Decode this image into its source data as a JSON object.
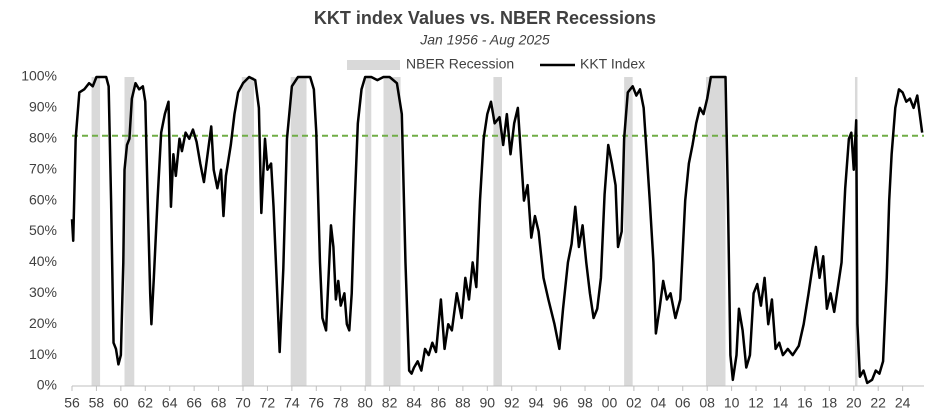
{
  "chart_data": {
    "type": "line",
    "title": "KKT index Values vs. NBER Recessions",
    "subtitle": "Jan 1956 - Aug 2025",
    "xlim": [
      1956,
      2025.75
    ],
    "xticks": [
      {
        "value": 1956,
        "label": "56"
      },
      {
        "value": 1958,
        "label": "58"
      },
      {
        "value": 1960,
        "label": "60"
      },
      {
        "value": 1962,
        "label": "62"
      },
      {
        "value": 1964,
        "label": "64"
      },
      {
        "value": 1966,
        "label": "66"
      },
      {
        "value": 1968,
        "label": "68"
      },
      {
        "value": 1970,
        "label": "70"
      },
      {
        "value": 1972,
        "label": "72"
      },
      {
        "value": 1974,
        "label": "74"
      },
      {
        "value": 1976,
        "label": "76"
      },
      {
        "value": 1978,
        "label": "78"
      },
      {
        "value": 1980,
        "label": "80"
      },
      {
        "value": 1982,
        "label": "82"
      },
      {
        "value": 1984,
        "label": "84"
      },
      {
        "value": 1986,
        "label": "86"
      },
      {
        "value": 1988,
        "label": "88"
      },
      {
        "value": 1990,
        "label": "90"
      },
      {
        "value": 1992,
        "label": "92"
      },
      {
        "value": 1994,
        "label": "94"
      },
      {
        "value": 1996,
        "label": "96"
      },
      {
        "value": 1998,
        "label": "98"
      },
      {
        "value": 2000,
        "label": "00"
      },
      {
        "value": 2002,
        "label": "02"
      },
      {
        "value": 2004,
        "label": "04"
      },
      {
        "value": 2006,
        "label": "06"
      },
      {
        "value": 2008,
        "label": "08"
      },
      {
        "value": 2010,
        "label": "10"
      },
      {
        "value": 2012,
        "label": "12"
      },
      {
        "value": 2014,
        "label": "14"
      },
      {
        "value": 2016,
        "label": "16"
      },
      {
        "value": 2018,
        "label": "18"
      },
      {
        "value": 2020,
        "label": "20"
      },
      {
        "value": 2022,
        "label": "22"
      },
      {
        "value": 2024,
        "label": "24"
      }
    ],
    "ylim": [
      0,
      100
    ],
    "yticks": [
      {
        "value": 0,
        "label": "0%"
      },
      {
        "value": 10,
        "label": "10%"
      },
      {
        "value": 20,
        "label": "20%"
      },
      {
        "value": 30,
        "label": "30%"
      },
      {
        "value": 40,
        "label": "40%"
      },
      {
        "value": 50,
        "label": "50%"
      },
      {
        "value": 60,
        "label": "60%"
      },
      {
        "value": 70,
        "label": "70%"
      },
      {
        "value": 80,
        "label": "80%"
      },
      {
        "value": 90,
        "label": "90%"
      },
      {
        "value": 100,
        "label": "100%"
      }
    ],
    "grid": false,
    "recessions": {
      "name": "NBER Recession",
      "color": "#d9d9d9",
      "periods": [
        [
          1957.6,
          1958.3
        ],
        [
          1960.3,
          1961.1
        ],
        [
          1969.9,
          1970.9
        ],
        [
          1973.9,
          1975.2
        ],
        [
          1980.0,
          1980.5
        ],
        [
          1981.5,
          1982.9
        ],
        [
          1990.5,
          1991.2
        ],
        [
          2001.2,
          2001.9
        ],
        [
          2007.9,
          2009.5
        ],
        [
          2020.1,
          2020.3
        ]
      ]
    },
    "threshold": {
      "value": 81,
      "color": "#70ad47"
    },
    "x": [
      1956.0,
      1956.1,
      1956.3,
      1956.6,
      1957.0,
      1957.4,
      1957.7,
      1958.0,
      1958.8,
      1959.0,
      1959.2,
      1959.4,
      1959.6,
      1959.8,
      1960.0,
      1960.2,
      1960.3,
      1960.5,
      1960.7,
      1960.9,
      1961.2,
      1961.5,
      1961.8,
      1962.0,
      1962.2,
      1962.4,
      1962.5,
      1962.7,
      1963.0,
      1963.3,
      1963.6,
      1963.9,
      1964.1,
      1964.3,
      1964.5,
      1964.8,
      1965.0,
      1965.3,
      1965.6,
      1965.9,
      1966.2,
      1966.5,
      1966.8,
      1967.1,
      1967.4,
      1967.6,
      1967.9,
      1968.2,
      1968.4,
      1968.6,
      1969.0,
      1969.3,
      1969.6,
      1970.0,
      1970.5,
      1971.0,
      1971.3,
      1971.5,
      1971.8,
      1972.0,
      1972.3,
      1972.5,
      1972.8,
      1973.0,
      1973.3,
      1973.6,
      1974.0,
      1974.5,
      1975.5,
      1975.8,
      1976.0,
      1976.3,
      1976.5,
      1976.8,
      1977.0,
      1977.2,
      1977.4,
      1977.6,
      1977.8,
      1978.0,
      1978.3,
      1978.5,
      1978.7,
      1978.9,
      1979.1,
      1979.4,
      1979.7,
      1980.0,
      1980.5,
      1981.0,
      1981.5,
      1982.0,
      1982.6,
      1983.0,
      1983.3,
      1983.6,
      1983.8,
      1984.0,
      1984.3,
      1984.6,
      1984.9,
      1985.2,
      1985.5,
      1985.8,
      1986.2,
      1986.5,
      1986.8,
      1987.1,
      1987.5,
      1987.9,
      1988.2,
      1988.5,
      1988.8,
      1989.1,
      1989.4,
      1989.7,
      1990.0,
      1990.3,
      1990.6,
      1991.0,
      1991.3,
      1991.6,
      1991.9,
      1992.2,
      1992.5,
      1992.8,
      1993.0,
      1993.3,
      1993.6,
      1993.9,
      1994.2,
      1994.6,
      1995.0,
      1995.5,
      1995.9,
      1996.2,
      1996.6,
      1996.9,
      1997.2,
      1997.5,
      1997.8,
      1998.1,
      1998.4,
      1998.7,
      1999.0,
      1999.3,
      1999.6,
      1999.9,
      2000.2,
      2000.5,
      2000.7,
      2001.0,
      2001.2,
      2001.5,
      2001.9,
      2002.2,
      2002.5,
      2002.8,
      2003.0,
      2003.3,
      2003.6,
      2003.8,
      2004.1,
      2004.4,
      2004.7,
      2005.0,
      2005.4,
      2005.8,
      2006.2,
      2006.5,
      2006.8,
      2007.1,
      2007.4,
      2007.7,
      2008.0,
      2008.3,
      2009.0,
      2009.5,
      2009.7,
      2009.9,
      2010.1,
      2010.4,
      2010.6,
      2010.9,
      2011.2,
      2011.5,
      2011.8,
      2012.1,
      2012.4,
      2012.7,
      2013.0,
      2013.3,
      2013.6,
      2013.9,
      2014.2,
      2014.6,
      2015.0,
      2015.5,
      2015.9,
      2016.3,
      2016.6,
      2016.9,
      2017.2,
      2017.5,
      2017.8,
      2018.1,
      2018.4,
      2018.7,
      2019.0,
      2019.3,
      2019.6,
      2019.8,
      2020.0,
      2020.2,
      2020.3,
      2020.5,
      2020.8,
      2021.1,
      2021.5,
      2021.8,
      2022.1,
      2022.4,
      2022.7,
      2022.9,
      2023.1,
      2023.4,
      2023.7,
      2024.0,
      2024.3,
      2024.6,
      2024.9,
      2025.2,
      2025.6
    ],
    "series": [
      {
        "name": "KKT Index",
        "color": "#000000",
        "values": [
          54,
          47,
          80,
          95,
          96,
          98,
          97,
          100,
          100,
          97,
          60,
          14,
          12,
          7,
          10,
          40,
          70,
          78,
          80,
          93,
          98,
          96,
          97,
          92,
          60,
          30,
          20,
          35,
          60,
          82,
          88,
          92,
          58,
          75,
          68,
          80,
          76,
          82,
          80,
          83,
          79,
          72,
          66,
          75,
          84,
          70,
          64,
          70,
          55,
          68,
          78,
          88,
          95,
          98,
          100,
          99,
          90,
          56,
          80,
          70,
          72,
          58,
          30,
          11,
          38,
          80,
          97,
          100,
          100,
          96,
          82,
          40,
          22,
          18,
          35,
          52,
          45,
          28,
          34,
          26,
          30,
          20,
          18,
          30,
          55,
          85,
          96,
          100,
          100,
          99,
          100,
          100,
          98,
          88,
          40,
          5,
          4,
          6,
          8,
          5,
          12,
          10,
          14,
          11,
          28,
          12,
          20,
          18,
          30,
          22,
          35,
          28,
          40,
          32,
          60,
          80,
          88,
          92,
          85,
          87,
          78,
          88,
          75,
          85,
          90,
          72,
          60,
          65,
          48,
          55,
          50,
          35,
          28,
          20,
          12,
          25,
          40,
          46,
          58,
          45,
          52,
          40,
          30,
          22,
          25,
          35,
          62,
          78,
          72,
          65,
          45,
          50,
          80,
          95,
          97,
          94,
          96,
          90,
          78,
          60,
          40,
          17,
          25,
          34,
          28,
          30,
          22,
          28,
          60,
          72,
          78,
          85,
          90,
          88,
          93,
          100,
          100,
          100,
          60,
          10,
          2,
          10,
          25,
          18,
          6,
          10,
          30,
          33,
          26,
          35,
          20,
          28,
          12,
          14,
          10,
          12,
          10,
          13,
          20,
          30,
          38,
          45,
          35,
          42,
          25,
          30,
          24,
          32,
          40,
          64,
          80,
          82,
          70,
          86,
          20,
          3,
          5,
          1,
          2,
          5,
          4,
          8,
          35,
          60,
          75,
          90,
          96,
          95,
          92,
          93,
          90,
          94,
          82
        ]
      }
    ]
  }
}
